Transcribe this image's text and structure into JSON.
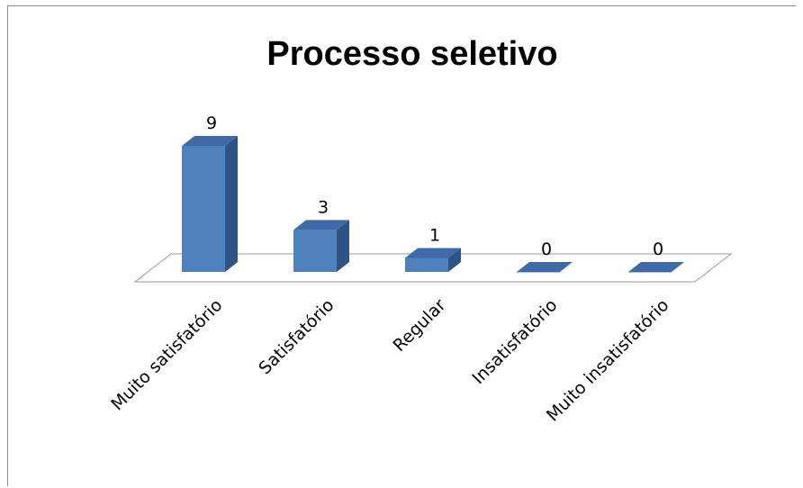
{
  "chart_data": {
    "type": "bar",
    "title": "Processo seletivo",
    "categories": [
      "Muito satisfatório",
      "Satisfatório",
      "Regular",
      "Insatisfatório",
      "Muito insatisfatório"
    ],
    "values": [
      9,
      3,
      1,
      0,
      0
    ],
    "xlabel": "",
    "ylabel": "",
    "ylim": [
      0,
      9
    ],
    "grid": false,
    "legend": "none",
    "style": "3d-column",
    "colors": {
      "front": "#4f81bd",
      "side": "#2f5385",
      "top": "#3f6aa6",
      "floor": "#ffffff",
      "floor_stroke": "#9a9a9a"
    }
  }
}
